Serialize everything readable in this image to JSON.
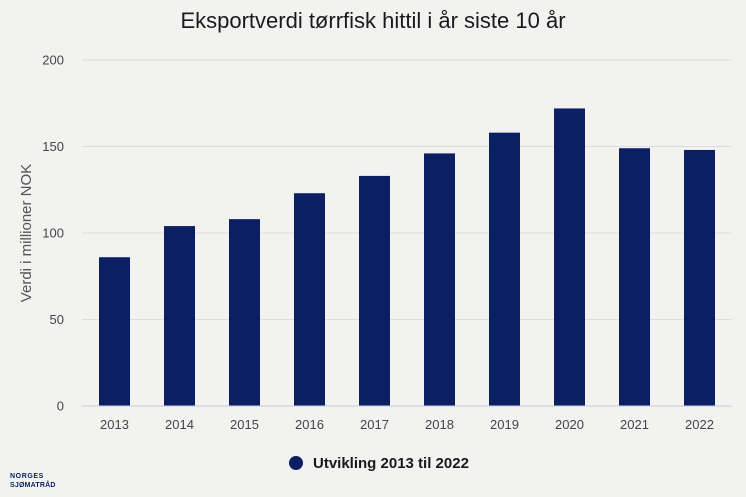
{
  "colors": {
    "bar": "#0b1f62",
    "background": "#f2f3f1"
  },
  "logo": {
    "line1": "NORGES",
    "line2": "SJØMATRÅD"
  },
  "chart_data": {
    "type": "bar",
    "title": "Eksportverdi tørrfisk hittil i år siste 10 år",
    "xlabel": "",
    "ylabel": "Verdi i millioner NOK",
    "ylim": [
      0,
      200
    ],
    "yticks": [
      0,
      50,
      100,
      150,
      200
    ],
    "grid": true,
    "legend_position": "bottom-center",
    "categories": [
      "2013",
      "2014",
      "2015",
      "2016",
      "2017",
      "2018",
      "2019",
      "2020",
      "2021",
      "2022"
    ],
    "series": [
      {
        "name": "Utvikling 2013 til 2022",
        "values": [
          86,
          104,
          108,
          123,
          133,
          146,
          158,
          172,
          149,
          148
        ]
      }
    ]
  }
}
